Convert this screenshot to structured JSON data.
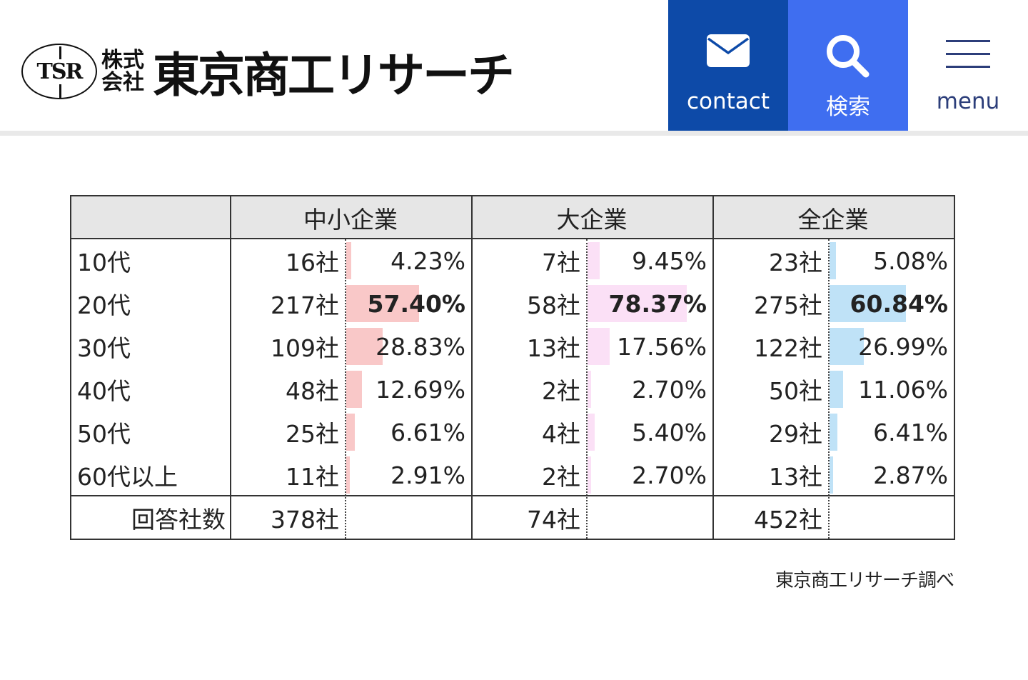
{
  "header": {
    "logo": {
      "emblem": "TSR",
      "prefix": "株式会社",
      "name": "東京商工リサーチ"
    },
    "buttons": [
      {
        "label": "contact",
        "icon": "mail-icon"
      },
      {
        "label": "検索",
        "icon": "search-icon"
      },
      {
        "label": "menu",
        "icon": "hamburger-icon"
      }
    ],
    "colors": {
      "contact": "#0d4aa8",
      "search": "#3f6ef0",
      "menu_text": "#2c3e7a"
    }
  },
  "table": {
    "groups": [
      "中小企業",
      "大企業",
      "全企業"
    ],
    "bar_colors": [
      "#f9c8c8",
      "#fbe0f6",
      "#bfe2f7"
    ],
    "rows": [
      {
        "label": "10代",
        "cells": [
          {
            "count": "16社",
            "pct": "4.23%",
            "value": 4.23
          },
          {
            "count": "7社",
            "pct": "9.45%",
            "value": 9.45
          },
          {
            "count": "23社",
            "pct": "5.08%",
            "value": 5.08
          }
        ]
      },
      {
        "label": "20代",
        "bold": true,
        "cells": [
          {
            "count": "217社",
            "pct": "57.40%",
            "value": 57.4
          },
          {
            "count": "58社",
            "pct": "78.37%",
            "value": 78.37
          },
          {
            "count": "275社",
            "pct": "60.84%",
            "value": 60.84
          }
        ]
      },
      {
        "label": "30代",
        "cells": [
          {
            "count": "109社",
            "pct": "28.83%",
            "value": 28.83
          },
          {
            "count": "13社",
            "pct": "17.56%",
            "value": 17.56
          },
          {
            "count": "122社",
            "pct": "26.99%",
            "value": 26.99
          }
        ]
      },
      {
        "label": "40代",
        "cells": [
          {
            "count": "48社",
            "pct": "12.69%",
            "value": 12.69
          },
          {
            "count": "2社",
            "pct": "2.70%",
            "value": 2.7
          },
          {
            "count": "50社",
            "pct": "11.06%",
            "value": 11.06
          }
        ]
      },
      {
        "label": "50代",
        "cells": [
          {
            "count": "25社",
            "pct": "6.61%",
            "value": 6.61
          },
          {
            "count": "4社",
            "pct": "5.40%",
            "value": 5.4
          },
          {
            "count": "29社",
            "pct": "6.41%",
            "value": 6.41
          }
        ]
      },
      {
        "label": "60代以上",
        "cells": [
          {
            "count": "11社",
            "pct": "2.91%",
            "value": 2.91
          },
          {
            "count": "2社",
            "pct": "2.70%",
            "value": 2.7
          },
          {
            "count": "13社",
            "pct": "2.87%",
            "value": 2.87
          }
        ]
      }
    ],
    "total": {
      "label": "回答社数",
      "counts": [
        "378社",
        "74社",
        "452社"
      ]
    }
  },
  "source_note": "東京商工リサーチ調べ"
}
